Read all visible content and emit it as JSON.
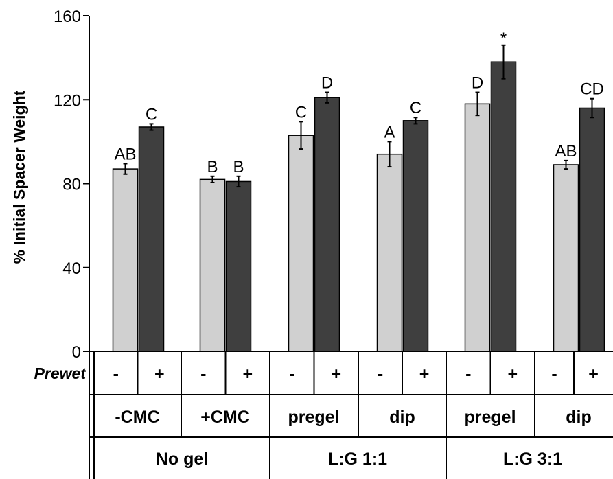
{
  "chart_data": {
    "type": "bar",
    "title": "",
    "ylabel": "% Initial Spacer Weight",
    "ylim": [
      0,
      160
    ],
    "yticks": [
      0,
      40,
      80,
      120,
      160
    ],
    "grid": false,
    "colors": {
      "minus": "#d0d0d0",
      "plus": "#3f3f3f"
    },
    "groups": [
      {
        "gel": "No gel",
        "subgroups": [
          "-CMC",
          "+CMC"
        ]
      },
      {
        "gel": "L:G 1:1",
        "subgroups": [
          "pregel",
          "dip"
        ]
      },
      {
        "gel": "L:G 3:1",
        "subgroups": [
          "pregel",
          "dip"
        ]
      }
    ],
    "prewet_label": "Prewet",
    "prewet_levels": [
      "-",
      "+"
    ],
    "bars": [
      {
        "group": "No gel",
        "condition": "-CMC",
        "prewet": "-",
        "value": 87,
        "error": 2.5,
        "letter": "AB"
      },
      {
        "group": "No gel",
        "condition": "-CMC",
        "prewet": "+",
        "value": 107,
        "error": 1.5,
        "letter": "C"
      },
      {
        "group": "No gel",
        "condition": "+CMC",
        "prewet": "-",
        "value": 82,
        "error": 1.5,
        "letter": "B"
      },
      {
        "group": "No gel",
        "condition": "+CMC",
        "prewet": "+",
        "value": 81,
        "error": 2.5,
        "letter": "B"
      },
      {
        "group": "L:G 1:1",
        "condition": "pregel",
        "prewet": "-",
        "value": 103,
        "error": 6.5,
        "letter": "C"
      },
      {
        "group": "L:G 1:1",
        "condition": "pregel",
        "prewet": "+",
        "value": 121,
        "error": 2.5,
        "letter": "D"
      },
      {
        "group": "L:G 1:1",
        "condition": "dip",
        "prewet": "-",
        "value": 94,
        "error": 6,
        "letter": "A"
      },
      {
        "group": "L:G 1:1",
        "condition": "dip",
        "prewet": "+",
        "value": 110,
        "error": 1.5,
        "letter": "C"
      },
      {
        "group": "L:G 3:1",
        "condition": "pregel",
        "prewet": "-",
        "value": 118,
        "error": 5.5,
        "letter": "D"
      },
      {
        "group": "L:G 3:1",
        "condition": "pregel",
        "prewet": "+",
        "value": 138,
        "error": 8,
        "letter": "*"
      },
      {
        "group": "L:G 3:1",
        "condition": "dip",
        "prewet": "-",
        "value": 89,
        "error": 2,
        "letter": "AB"
      },
      {
        "group": "L:G 3:1",
        "condition": "dip",
        "prewet": "+",
        "value": 116,
        "error": 4.5,
        "letter": "CD"
      }
    ]
  }
}
